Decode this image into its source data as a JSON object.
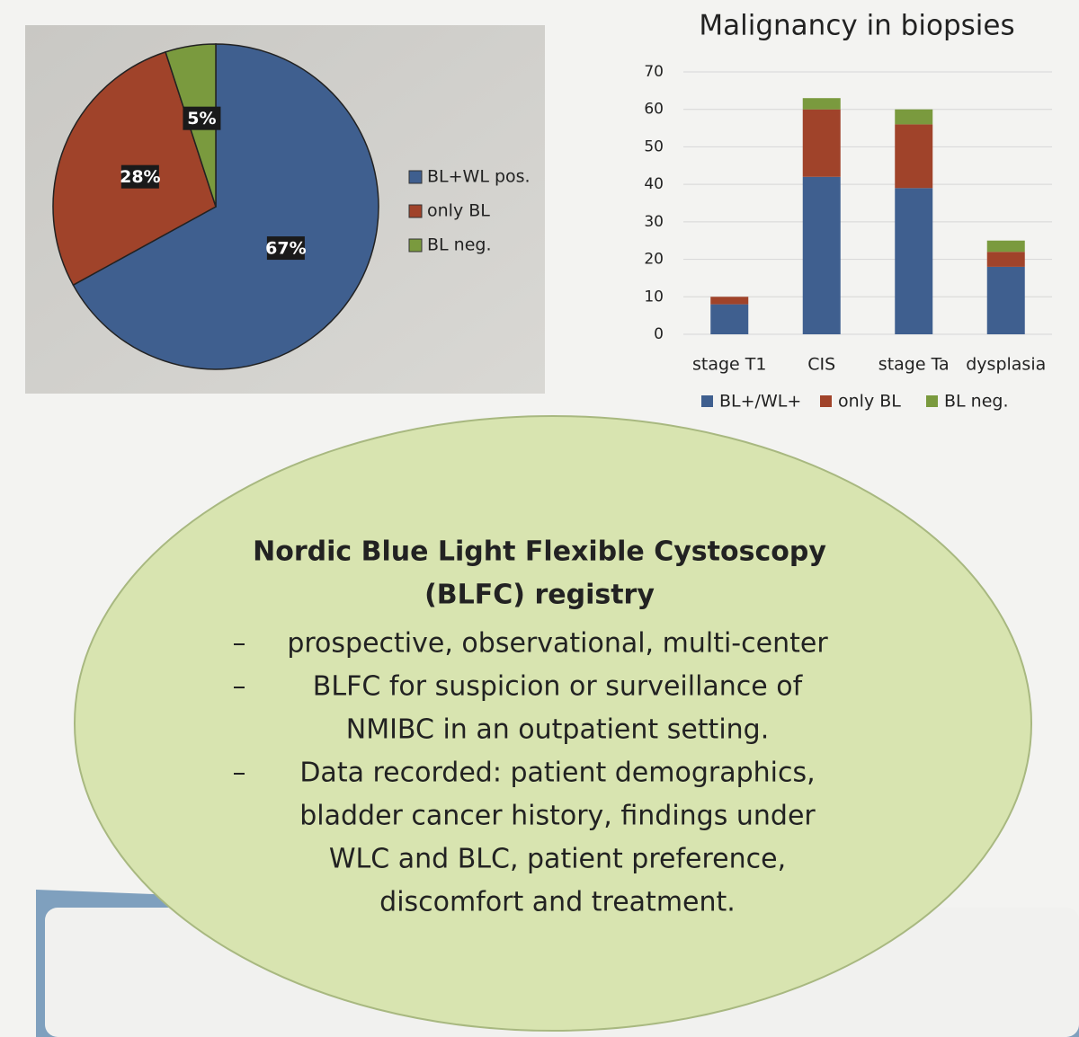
{
  "chart_data": [
    {
      "type": "pie",
      "categories": [
        "BL+WL pos.",
        "only BL",
        "BL neg."
      ],
      "values": [
        67,
        28,
        5
      ],
      "value_labels": [
        "67%",
        "28%",
        "5%"
      ],
      "colors": [
        "#3f5f8f",
        "#a0432a",
        "#7a9a3e"
      ],
      "legend": "right"
    },
    {
      "type": "stacked-bar",
      "title": "Malignancy in biopsies",
      "categories": [
        "stage T1",
        "CIS",
        "stage Ta",
        "dysplasia"
      ],
      "series": [
        {
          "name": "BL+/WL+",
          "color": "#3f5f8f",
          "values": [
            8,
            42,
            39,
            18
          ]
        },
        {
          "name": "only BL",
          "color": "#a0432a",
          "values": [
            2,
            18,
            17,
            4
          ]
        },
        {
          "name": "BL neg.",
          "color": "#7a9a3e",
          "values": [
            0,
            3,
            4,
            3
          ]
        }
      ],
      "ylim": [
        0,
        70
      ],
      "yticks": [
        0,
        10,
        20,
        30,
        40,
        50,
        60,
        70
      ],
      "grid": true,
      "legend": "bottom"
    }
  ],
  "panel": {
    "title": [
      "Nordic Blue Light Flexible Cystoscopy",
      "(BLFC) registry"
    ],
    "bullets": [
      [
        "prospective, observational, multi-center"
      ],
      [
        "BLFC for suspicion or surveillance of",
        "NMIBC in an outpatient setting."
      ],
      [
        "Data recorded: patient demographics,",
        "bladder cancer history, findings under",
        "WLC and BLC, patient preference,",
        "discomfort and treatment."
      ]
    ]
  }
}
